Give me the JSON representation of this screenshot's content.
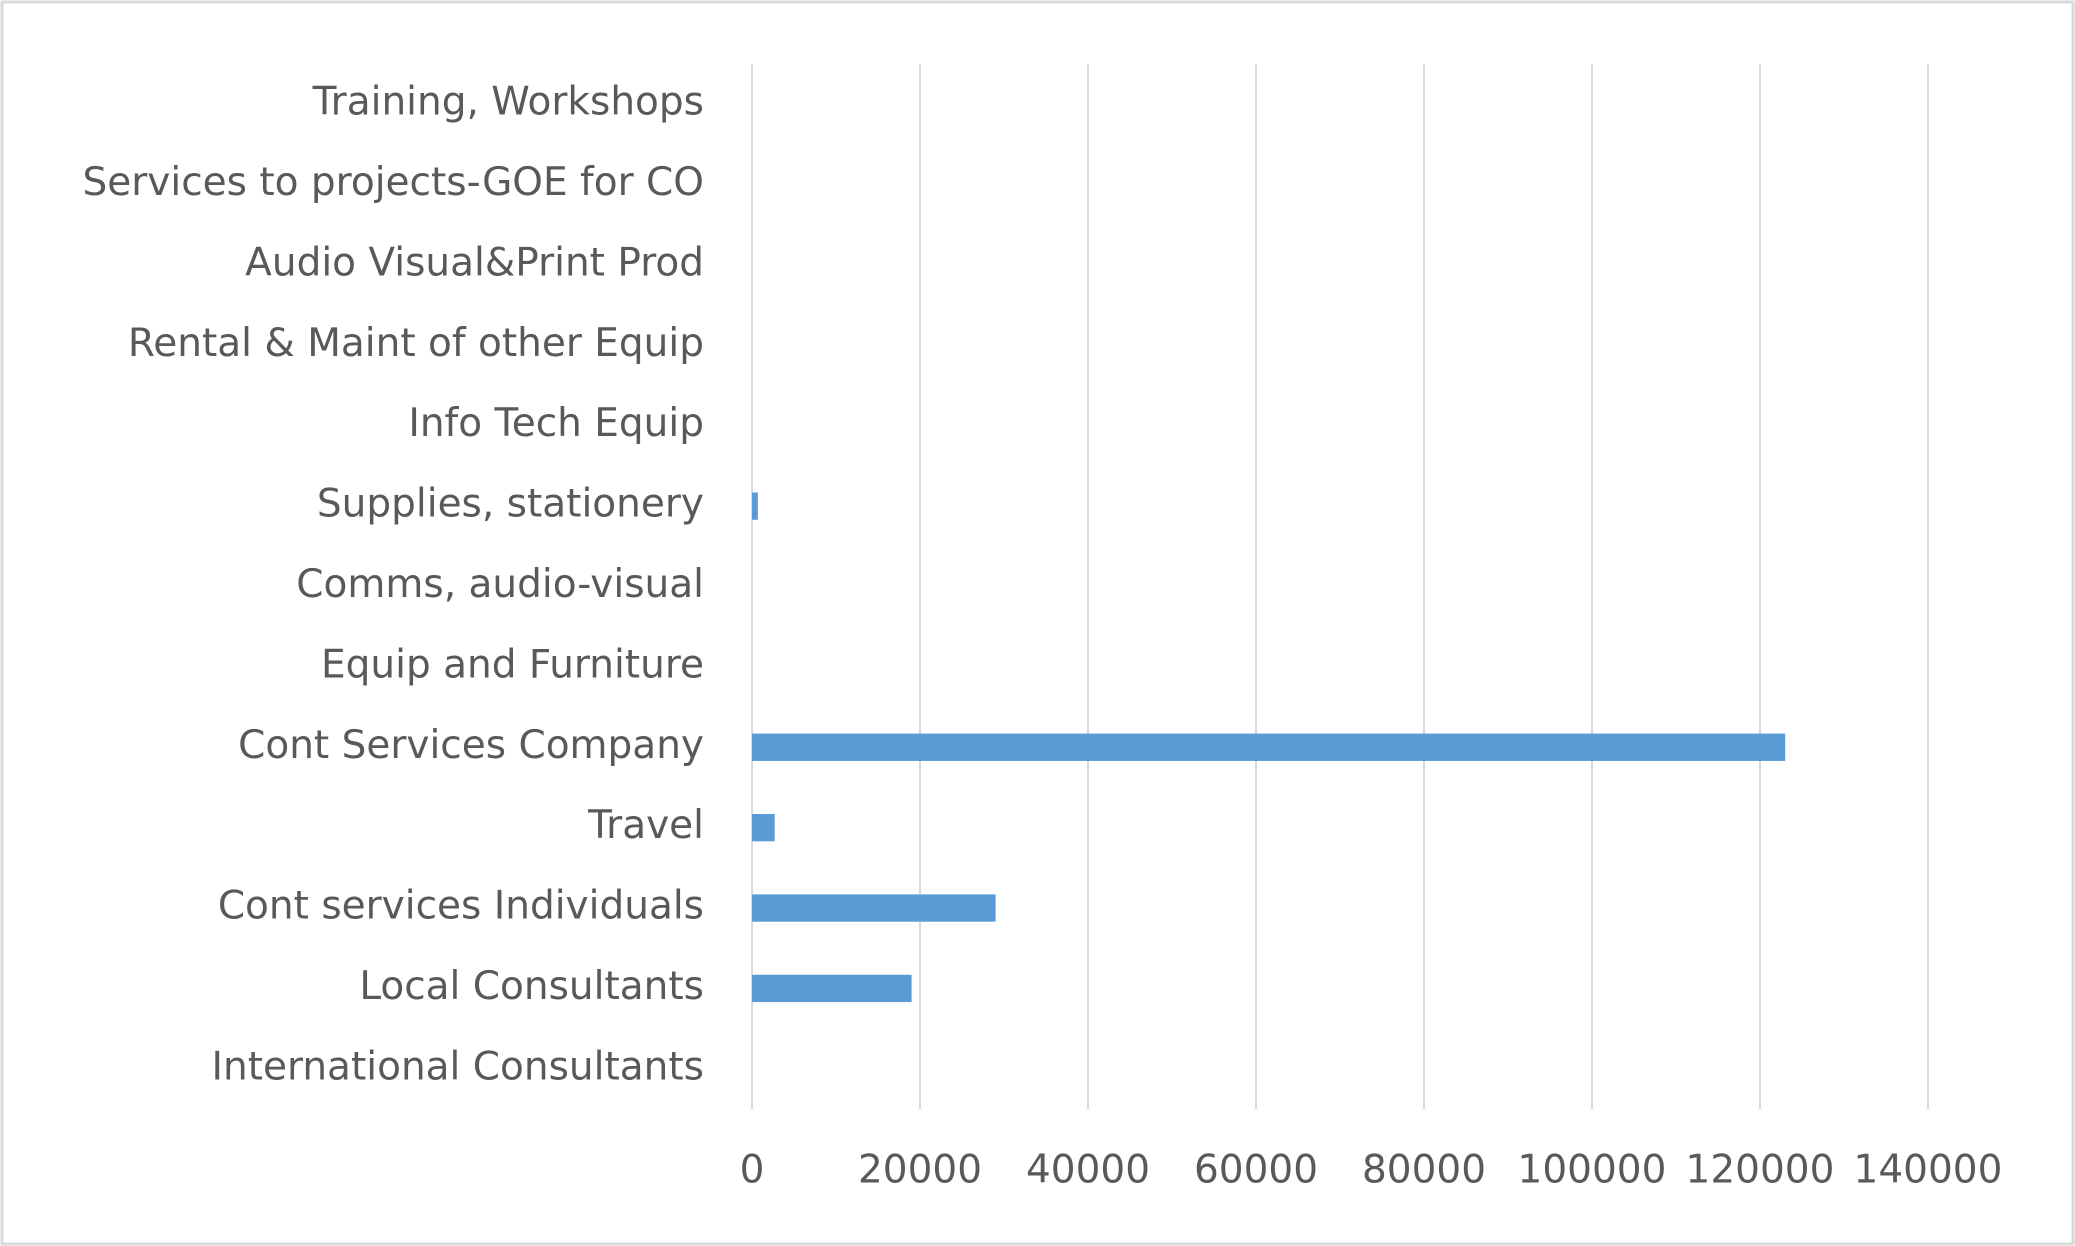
{
  "chart_data": {
    "type": "hbar",
    "categories": [
      "International Consultants",
      "Local Consultants",
      "Cont services Individuals",
      "Travel",
      "Cont Services Company",
      "Equip and Furniture",
      "Comms, audio-visual",
      "Supplies, stationery",
      "Info Tech Equip",
      "Rental & Maint of other Equip",
      "Audio Visual&Print Prod",
      "Services to projects-GOE for CO",
      "Training, Workshops"
    ],
    "values": [
      0,
      19000,
      29000,
      2700,
      123000,
      0,
      0,
      700,
      0,
      0,
      0,
      0,
      0
    ],
    "color": "#5b9bd5",
    "xlim": [
      0,
      140000
    ],
    "xticks": [
      0,
      20000,
      40000,
      60000,
      80000,
      100000,
      120000,
      140000
    ],
    "grid": true
  }
}
